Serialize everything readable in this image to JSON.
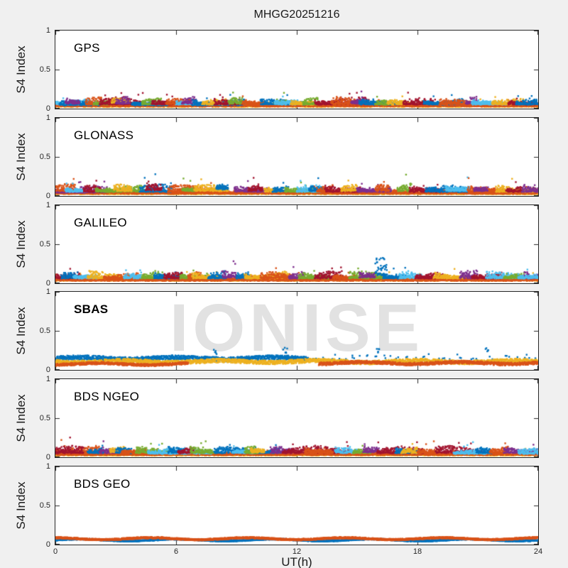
{
  "title": "MHGG20251216",
  "watermark": "IONISE",
  "axes": {
    "xlabel": "UT(h)",
    "ylabel": "S4 Index",
    "xlim": [
      0,
      24
    ],
    "ylim": [
      0,
      1
    ],
    "x_ticks": [
      0,
      6,
      12,
      18,
      24
    ],
    "x_tick_labels": [
      "0",
      "6",
      "12",
      "18",
      "24"
    ],
    "y_ticks": [
      0,
      0.5,
      1
    ],
    "y_tick_labels": [
      "1",
      "0.5",
      "0"
    ],
    "axis_color": "#262626",
    "panel_background": "#ffffff",
    "figure_background": "#f0f0f0"
  },
  "chart_data": {
    "type": "scatter",
    "title": "MHGG20251216",
    "xlabel": "UT(h)",
    "ylabel": "S4 Index",
    "xlim": [
      0,
      24
    ],
    "ylim": [
      0,
      1
    ],
    "x_ticks": [
      0,
      6,
      12,
      18,
      24
    ],
    "y_ticks": [
      0,
      0.5,
      1
    ],
    "grid": false,
    "legend": "none",
    "palette": [
      "#0072BD",
      "#D95319",
      "#EDB120",
      "#7E2F8E",
      "#77AC30",
      "#4DBEEE",
      "#A2142F"
    ],
    "cluster_format": [
      "color_index",
      "t_start_h",
      "t_end_h",
      "base_s4",
      "amplitude_s4",
      "step_h_optional",
      "band_mode_optional"
    ],
    "panels": [
      {
        "label": "GPS",
        "bold": false,
        "seed": 101,
        "watermark": false,
        "clusters": [
          [
            2,
            0,
            24,
            0.02,
            0.045
          ],
          [
            1,
            0,
            24,
            0.025,
            0.05
          ],
          [
            5,
            0,
            1.8,
            0.05,
            0.07
          ],
          [
            0,
            0.2,
            2.2,
            0.04,
            0.06
          ],
          [
            3,
            0.5,
            1.2,
            0.06,
            0.09
          ],
          [
            1,
            1.5,
            3.4,
            0.05,
            0.09
          ],
          [
            4,
            1.9,
            2.6,
            0.05,
            0.08
          ],
          [
            6,
            2.2,
            4.4,
            0.05,
            0.09
          ],
          [
            2,
            2.8,
            3.7,
            0.07,
            0.1
          ],
          [
            3,
            3.0,
            3.7,
            0.06,
            0.11
          ],
          [
            0,
            3.8,
            5.6,
            0.04,
            0.06
          ],
          [
            4,
            4.3,
            5.3,
            0.05,
            0.08
          ],
          [
            6,
            4.8,
            6.4,
            0.05,
            0.08
          ],
          [
            1,
            5.5,
            6.7,
            0.05,
            0.08
          ],
          [
            5,
            6.0,
            7.2,
            0.05,
            0.06
          ],
          [
            3,
            6.3,
            7.0,
            0.06,
            0.1
          ],
          [
            0,
            6.8,
            9.4,
            0.04,
            0.08
          ],
          [
            2,
            7.3,
            8.5,
            0.05,
            0.07
          ],
          [
            6,
            7.9,
            9.3,
            0.05,
            0.09
          ],
          [
            4,
            8.6,
            9.3,
            0.06,
            0.09
          ],
          [
            1,
            9.3,
            10.5,
            0.05,
            0.08
          ],
          [
            0,
            10.2,
            12.6,
            0.05,
            0.07
          ],
          [
            4,
            10.9,
            11.5,
            0.06,
            0.1
          ],
          [
            5,
            10.9,
            12.1,
            0.05,
            0.06
          ],
          [
            2,
            11.7,
            12.9,
            0.05,
            0.07
          ],
          [
            4,
            12.3,
            13.1,
            0.05,
            0.08
          ],
          [
            6,
            12.9,
            15.6,
            0.05,
            0.09
          ],
          [
            1,
            13.7,
            15.3,
            0.05,
            0.09
          ],
          [
            3,
            14.7,
            15.4,
            0.06,
            0.09
          ],
          [
            0,
            15.1,
            17.1,
            0.05,
            0.06
          ],
          [
            4,
            15.9,
            16.7,
            0.05,
            0.08
          ],
          [
            2,
            16.5,
            17.7,
            0.05,
            0.07
          ],
          [
            6,
            17.3,
            18.9,
            0.05,
            0.08
          ],
          [
            0,
            18.3,
            20.3,
            0.05,
            0.07
          ],
          [
            1,
            19.1,
            20.7,
            0.05,
            0.07
          ],
          [
            3,
            20.4,
            21.0,
            0.06,
            0.12
          ],
          [
            5,
            20.7,
            22.5,
            0.05,
            0.06
          ],
          [
            2,
            21.7,
            23.3,
            0.05,
            0.07
          ],
          [
            6,
            22.5,
            24,
            0.05,
            0.07
          ],
          [
            0,
            22.9,
            24,
            0.05,
            0.06
          ]
        ]
      },
      {
        "label": "GLONASS",
        "bold": false,
        "seed": 102,
        "watermark": false,
        "clusters": [
          [
            2,
            0,
            24,
            0.02,
            0.045
          ],
          [
            1,
            0,
            24,
            0.025,
            0.05
          ],
          [
            3,
            0,
            2.6,
            0.04,
            0.08
          ],
          [
            1,
            0,
            1.0,
            0.06,
            0.09
          ],
          [
            5,
            0.5,
            1.5,
            0.05,
            0.07
          ],
          [
            6,
            1.4,
            2.3,
            0.05,
            0.08
          ],
          [
            4,
            2.0,
            4.6,
            0.05,
            0.08
          ],
          [
            2,
            2.9,
            3.8,
            0.06,
            0.09
          ],
          [
            0,
            4.2,
            5.8,
            0.05,
            0.1
          ],
          [
            6,
            4.5,
            5.3,
            0.07,
            0.12
          ],
          [
            1,
            5.6,
            8.1,
            0.05,
            0.09
          ],
          [
            4,
            6.3,
            7.0,
            0.06,
            0.09
          ],
          [
            2,
            6.9,
            8.6,
            0.06,
            0.08
          ],
          [
            0,
            8.0,
            8.6,
            0.08,
            0.12
          ],
          [
            3,
            8.9,
            10.6,
            0.05,
            0.08
          ],
          [
            6,
            9.6,
            10.3,
            0.06,
            0.1
          ],
          [
            2,
            10.4,
            11.3,
            0.05,
            0.08
          ],
          [
            0,
            10.8,
            11.6,
            0.05,
            0.07
          ],
          [
            4,
            11.4,
            13.1,
            0.05,
            0.08
          ],
          [
            5,
            12.0,
            13.2,
            0.05,
            0.08
          ],
          [
            0,
            12.6,
            13.3,
            0.06,
            0.09
          ],
          [
            1,
            13.0,
            13.8,
            0.05,
            0.08
          ],
          [
            6,
            13.4,
            15.2,
            0.05,
            0.09
          ],
          [
            2,
            14.2,
            15.0,
            0.06,
            0.08
          ],
          [
            3,
            15.0,
            16.7,
            0.05,
            0.08
          ],
          [
            1,
            15.9,
            16.6,
            0.06,
            0.08
          ],
          [
            4,
            17.0,
            17.7,
            0.06,
            0.13
          ],
          [
            6,
            17.6,
            19.2,
            0.05,
            0.08
          ],
          [
            0,
            18.4,
            20.6,
            0.05,
            0.08
          ],
          [
            5,
            19.4,
            20.6,
            0.06,
            0.1
          ],
          [
            1,
            20.5,
            22.6,
            0.05,
            0.08
          ],
          [
            3,
            20.8,
            21.5,
            0.06,
            0.09
          ],
          [
            2,
            21.9,
            24,
            0.05,
            0.08
          ],
          [
            6,
            22.4,
            23.2,
            0.05,
            0.08
          ],
          [
            3,
            23.2,
            24,
            0.05,
            0.09
          ]
        ]
      },
      {
        "label": "GALILEO",
        "bold": false,
        "seed": 103,
        "watermark": false,
        "clusters": [
          [
            2,
            0,
            24,
            0.03,
            0.05
          ],
          [
            1,
            0,
            24,
            0.03,
            0.05
          ],
          [
            6,
            0,
            1.2,
            0.06,
            0.1
          ],
          [
            0,
            0.3,
            1.1,
            0.06,
            0.08
          ],
          [
            5,
            0.9,
            2.1,
            0.06,
            0.08
          ],
          [
            2,
            1.6,
            3.3,
            0.06,
            0.09
          ],
          [
            1,
            2.4,
            4.2,
            0.05,
            0.08
          ],
          [
            5,
            3.4,
            4.3,
            0.06,
            0.08
          ],
          [
            4,
            4.3,
            5.4,
            0.06,
            0.08
          ],
          [
            0,
            4.9,
            6.2,
            0.06,
            0.09
          ],
          [
            6,
            5.4,
            6.3,
            0.06,
            0.08
          ],
          [
            4,
            6.2,
            7.6,
            0.06,
            0.08
          ],
          [
            1,
            6.6,
            7.3,
            0.06,
            0.08
          ],
          [
            2,
            6.8,
            8.2,
            0.06,
            0.08
          ],
          [
            0,
            7.6,
            8.5,
            0.06,
            0.09
          ],
          [
            3,
            8.3,
            9.0,
            0.07,
            0.14
          ],
          [
            0,
            9.0,
            9.7,
            0.06,
            0.08
          ],
          [
            2,
            9.4,
            11.6,
            0.06,
            0.09
          ],
          [
            1,
            10.2,
            11.8,
            0.06,
            0.08
          ],
          [
            3,
            11.6,
            12.4,
            0.06,
            0.1
          ],
          [
            4,
            12.1,
            13.6,
            0.06,
            0.08
          ],
          [
            6,
            12.9,
            14.3,
            0.06,
            0.09
          ],
          [
            1,
            13.8,
            14.9,
            0.06,
            0.08
          ],
          [
            4,
            14.6,
            16.4,
            0.06,
            0.09
          ],
          [
            3,
            15.1,
            15.9,
            0.07,
            0.13
          ],
          [
            0,
            15.9,
            16.5,
            0.1,
            0.22
          ],
          [
            0,
            16.3,
            17.4,
            0.06,
            0.09
          ],
          [
            5,
            17.1,
            18.2,
            0.06,
            0.08
          ],
          [
            6,
            17.9,
            19.3,
            0.06,
            0.08
          ],
          [
            2,
            18.8,
            20.3,
            0.06,
            0.08
          ],
          [
            3,
            20.1,
            21.0,
            0.06,
            0.1
          ],
          [
            6,
            20.7,
            22.2,
            0.06,
            0.08
          ],
          [
            5,
            21.4,
            23.3,
            0.06,
            0.09
          ],
          [
            4,
            22.3,
            23.4,
            0.06,
            0.08
          ],
          [
            3,
            23.3,
            24,
            0.06,
            0.09
          ],
          [
            5,
            23.0,
            24,
            0.06,
            0.08
          ]
        ]
      },
      {
        "label": "SBAS",
        "bold": true,
        "seed": 104,
        "watermark": true,
        "clusters": [
          [
            0,
            0,
            12.6,
            0.14,
            0.055,
            0.012,
            1
          ],
          [
            0,
            12.6,
            24,
            0.15,
            0.07,
            0.22,
            1
          ],
          [
            2,
            0,
            24,
            0.1,
            0.05,
            0.012,
            1
          ],
          [
            1,
            0,
            6.6,
            0.07,
            0.032,
            0.012,
            1
          ],
          [
            1,
            13.1,
            24,
            0.082,
            0.038,
            0.012,
            1
          ],
          [
            0,
            7.9,
            8.05,
            0.22,
            0.06,
            0.03,
            1
          ],
          [
            0,
            11.35,
            11.5,
            0.24,
            0.08,
            0.03,
            1
          ],
          [
            0,
            16.0,
            16.15,
            0.22,
            0.06,
            0.03,
            1
          ],
          [
            0,
            21.4,
            21.55,
            0.24,
            0.08,
            0.03,
            1
          ]
        ]
      },
      {
        "label": "BDS NGEO",
        "bold": false,
        "seed": 105,
        "watermark": false,
        "clusters": [
          [
            2,
            0,
            24,
            0.02,
            0.04
          ],
          [
            1,
            0,
            24,
            0.025,
            0.045
          ],
          [
            1,
            0,
            2.3,
            0.05,
            0.09
          ],
          [
            6,
            0,
            1.4,
            0.05,
            0.09
          ],
          [
            0,
            1.6,
            2.4,
            0.05,
            0.08
          ],
          [
            3,
            2.2,
            3.0,
            0.05,
            0.08
          ],
          [
            2,
            2.7,
            3.5,
            0.06,
            0.1
          ],
          [
            0,
            3.0,
            3.8,
            0.05,
            0.07
          ],
          [
            1,
            3.3,
            4.6,
            0.05,
            0.08
          ],
          [
            4,
            4.0,
            5.9,
            0.05,
            0.08
          ],
          [
            5,
            4.6,
            7.8,
            0.04,
            0.08
          ],
          [
            0,
            5.6,
            6.4,
            0.05,
            0.09
          ],
          [
            6,
            6.1,
            6.9,
            0.05,
            0.08
          ],
          [
            4,
            6.7,
            8.1,
            0.05,
            0.09
          ],
          [
            0,
            7.9,
            11.2,
            0.05,
            0.08
          ],
          [
            5,
            8.8,
            10.0,
            0.05,
            0.07
          ],
          [
            4,
            9.4,
            10.1,
            0.05,
            0.08
          ],
          [
            2,
            9.7,
            10.4,
            0.06,
            0.09
          ],
          [
            3,
            10.7,
            11.8,
            0.05,
            0.09
          ],
          [
            6,
            11.3,
            14.6,
            0.05,
            0.09
          ],
          [
            1,
            12.4,
            13.8,
            0.05,
            0.08
          ],
          [
            5,
            13.9,
            15.1,
            0.05,
            0.07
          ],
          [
            4,
            14.8,
            15.7,
            0.05,
            0.08
          ],
          [
            3,
            15.3,
            16.1,
            0.06,
            0.09
          ],
          [
            6,
            16.0,
            18.3,
            0.05,
            0.08
          ],
          [
            0,
            16.9,
            18.1,
            0.05,
            0.08
          ],
          [
            2,
            17.2,
            18.0,
            0.05,
            0.08
          ],
          [
            1,
            18.0,
            19.1,
            0.05,
            0.08
          ],
          [
            6,
            18.9,
            21.2,
            0.05,
            0.09
          ],
          [
            5,
            19.8,
            21.6,
            0.04,
            0.08
          ],
          [
            0,
            20.9,
            21.7,
            0.05,
            0.08
          ],
          [
            1,
            21.6,
            22.5,
            0.05,
            0.08
          ],
          [
            3,
            22.3,
            24,
            0.05,
            0.09
          ],
          [
            5,
            23.0,
            24,
            0.04,
            0.07
          ]
        ]
      },
      {
        "label": "BDS GEO",
        "bold": false,
        "seed": 106,
        "watermark": false,
        "clusters": [
          [
            0,
            0,
            24,
            0.055,
            0.014,
            0.01,
            1
          ],
          [
            1,
            0,
            24,
            0.072,
            0.02,
            0.008,
            1
          ]
        ]
      }
    ]
  }
}
